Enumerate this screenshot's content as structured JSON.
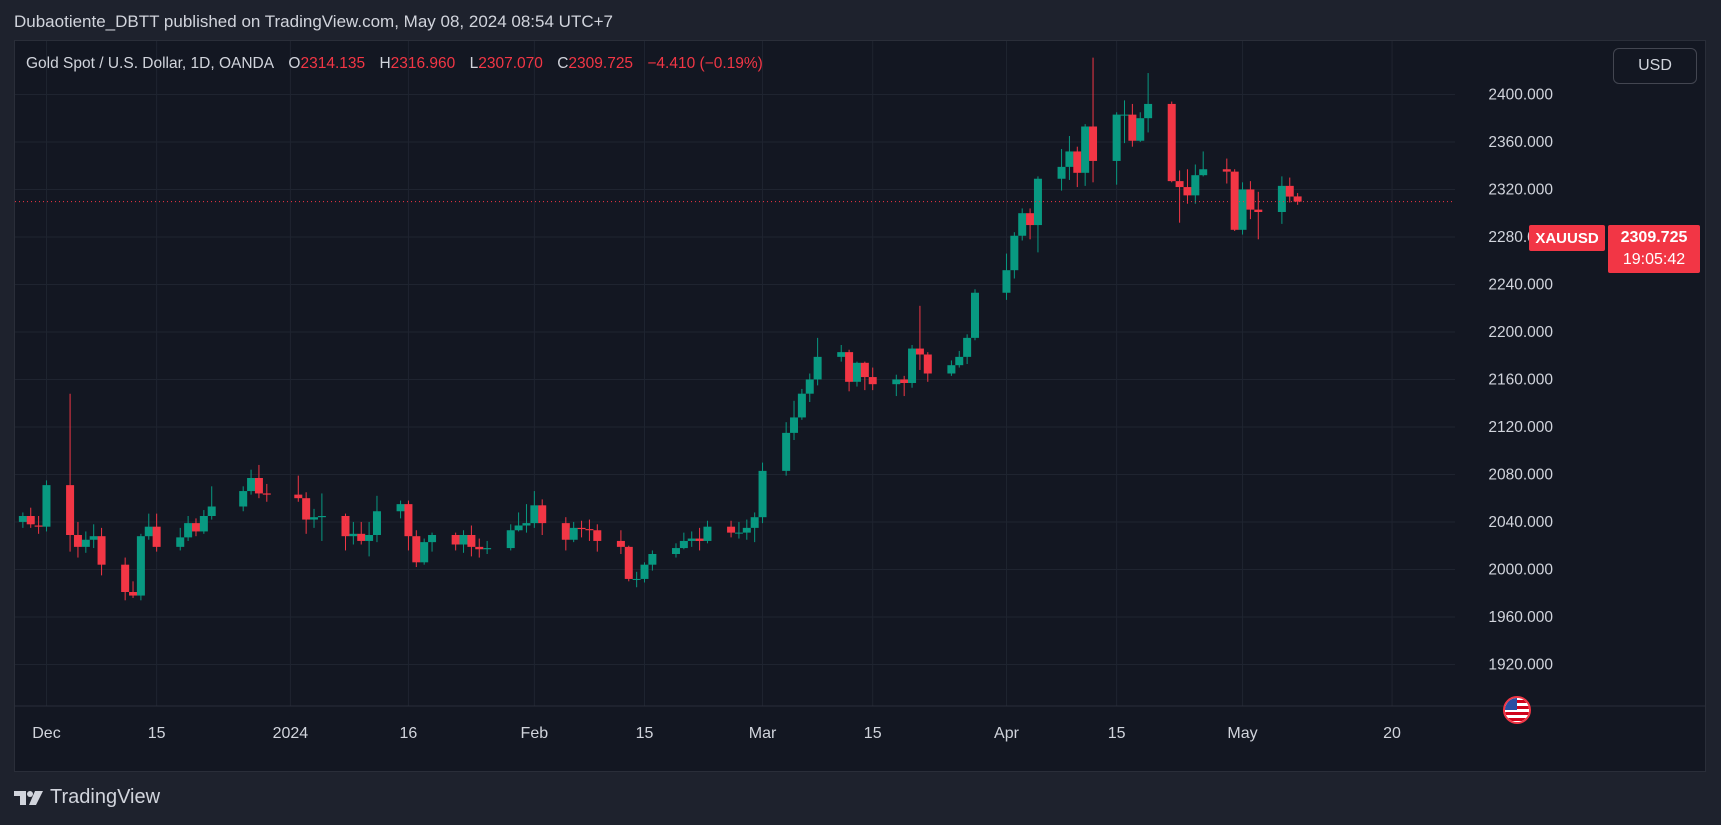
{
  "header": {
    "text": "Dubaotiente_DBTT published on TradingView.com, May 08, 2024 08:54 UTC+7"
  },
  "legend": {
    "title": "Gold Spot / U.S. Dollar, 1D, OANDA",
    "o_label": "O",
    "o_value": "2314.135",
    "h_label": "H",
    "h_value": "2316.960",
    "l_label": "L",
    "l_value": "2307.070",
    "c_label": "C",
    "c_value": "2309.725",
    "change": "−4.410 (−0.19%)"
  },
  "currency_button": "USD",
  "symbol_label": "XAUUSD",
  "last_price": "2309.725",
  "countdown": "19:05:42",
  "footer": {
    "brand": "TradingView"
  },
  "colors": {
    "up": "#089981",
    "down": "#f23645",
    "background": "#131722",
    "grid": "#1f2430"
  },
  "icons": {
    "logo": "tradingview-logo-icon",
    "flag": "us-flag-icon"
  },
  "chart_data": {
    "type": "candlestick",
    "title": "Gold Spot / U.S. Dollar, 1D, OANDA",
    "y_axis": {
      "ticks": [
        "1920.000",
        "1960.000",
        "2000.000",
        "2040.000",
        "2080.000",
        "2120.000",
        "2160.000",
        "2200.000",
        "2240.000",
        "2280.000",
        "2320.000",
        "2360.000",
        "2400.000"
      ],
      "range": [
        1885,
        2445
      ]
    },
    "x_axis": {
      "ticks": [
        {
          "label": "Dec",
          "date": "2023-12-01"
        },
        {
          "label": "15",
          "date": "2023-12-15"
        },
        {
          "label": "2024",
          "date": "2024-01-01"
        },
        {
          "label": "16",
          "date": "2024-01-16"
        },
        {
          "label": "Feb",
          "date": "2024-02-01"
        },
        {
          "label": "15",
          "date": "2024-02-15"
        },
        {
          "label": "Mar",
          "date": "2024-03-01"
        },
        {
          "label": "15",
          "date": "2024-03-15"
        },
        {
          "label": "Apr",
          "date": "2024-04-01"
        },
        {
          "label": "15",
          "date": "2024-04-15"
        },
        {
          "label": "May",
          "date": "2024-05-01"
        },
        {
          "label": "20",
          "date": "2024-05-20"
        }
      ],
      "range": [
        "2023-11-27",
        "2024-05-28"
      ]
    },
    "last_price": 2309.725,
    "candles": [
      {
        "d": "2023-11-28",
        "o": 2040,
        "h": 2048,
        "l": 2035,
        "c": 2045
      },
      {
        "d": "2023-11-29",
        "o": 2045,
        "h": 2052,
        "l": 2035,
        "c": 2038
      },
      {
        "d": "2023-11-30",
        "o": 2037,
        "h": 2045,
        "l": 2030,
        "c": 2036
      },
      {
        "d": "2023-12-01",
        "o": 2036,
        "h": 2075,
        "l": 2032,
        "c": 2071
      },
      {
        "d": "2023-12-04",
        "o": 2071,
        "h": 2148,
        "l": 2015,
        "c": 2029
      },
      {
        "d": "2023-12-05",
        "o": 2029,
        "h": 2040,
        "l": 2010,
        "c": 2019
      },
      {
        "d": "2023-12-06",
        "o": 2019,
        "h": 2032,
        "l": 2014,
        "c": 2025
      },
      {
        "d": "2023-12-07",
        "o": 2025,
        "h": 2038,
        "l": 2018,
        "c": 2028
      },
      {
        "d": "2023-12-08",
        "o": 2028,
        "h": 2035,
        "l": 1995,
        "c": 2004
      },
      {
        "d": "2023-12-11",
        "o": 2004,
        "h": 2010,
        "l": 1974,
        "c": 1981
      },
      {
        "d": "2023-12-12",
        "o": 1981,
        "h": 1990,
        "l": 1976,
        "c": 1978
      },
      {
        "d": "2023-12-13",
        "o": 1978,
        "h": 2030,
        "l": 1974,
        "c": 2028
      },
      {
        "d": "2023-12-14",
        "o": 2028,
        "h": 2047,
        "l": 2025,
        "c": 2036
      },
      {
        "d": "2023-12-15",
        "o": 2036,
        "h": 2047,
        "l": 2015,
        "c": 2019
      },
      {
        "d": "2023-12-18",
        "o": 2019,
        "h": 2035,
        "l": 2016,
        "c": 2027
      },
      {
        "d": "2023-12-19",
        "o": 2027,
        "h": 2045,
        "l": 2024,
        "c": 2039
      },
      {
        "d": "2023-12-20",
        "o": 2039,
        "h": 2043,
        "l": 2028,
        "c": 2032
      },
      {
        "d": "2023-12-21",
        "o": 2032,
        "h": 2050,
        "l": 2030,
        "c": 2045
      },
      {
        "d": "2023-12-22",
        "o": 2045,
        "h": 2070,
        "l": 2042,
        "c": 2053
      },
      {
        "d": "2023-12-26",
        "o": 2053,
        "h": 2070,
        "l": 2049,
        "c": 2066
      },
      {
        "d": "2023-12-27",
        "o": 2066,
        "h": 2084,
        "l": 2063,
        "c": 2077
      },
      {
        "d": "2023-12-28",
        "o": 2077,
        "h": 2088,
        "l": 2060,
        "c": 2064
      },
      {
        "d": "2023-12-29",
        "o": 2064,
        "h": 2072,
        "l": 2057,
        "c": 2063
      },
      {
        "d": "2024-01-02",
        "o": 2063,
        "h": 2079,
        "l": 2057,
        "c": 2060
      },
      {
        "d": "2024-01-03",
        "o": 2060,
        "h": 2065,
        "l": 2030,
        "c": 2042
      },
      {
        "d": "2024-01-04",
        "o": 2042,
        "h": 2051,
        "l": 2035,
        "c": 2044
      },
      {
        "d": "2024-01-05",
        "o": 2044,
        "h": 2064,
        "l": 2024,
        "c": 2045
      },
      {
        "d": "2024-01-08",
        "o": 2045,
        "h": 2047,
        "l": 2016,
        "c": 2028
      },
      {
        "d": "2024-01-09",
        "o": 2028,
        "h": 2040,
        "l": 2021,
        "c": 2030
      },
      {
        "d": "2024-01-10",
        "o": 2030,
        "h": 2040,
        "l": 2021,
        "c": 2024
      },
      {
        "d": "2024-01-11",
        "o": 2024,
        "h": 2040,
        "l": 2011,
        "c": 2029
      },
      {
        "d": "2024-01-12",
        "o": 2029,
        "h": 2062,
        "l": 2023,
        "c": 2049
      },
      {
        "d": "2024-01-15",
        "o": 2049,
        "h": 2058,
        "l": 2043,
        "c": 2055
      },
      {
        "d": "2024-01-16",
        "o": 2055,
        "h": 2058,
        "l": 2016,
        "c": 2028
      },
      {
        "d": "2024-01-17",
        "o": 2028,
        "h": 2033,
        "l": 2002,
        "c": 2006
      },
      {
        "d": "2024-01-18",
        "o": 2006,
        "h": 2026,
        "l": 2004,
        "c": 2023
      },
      {
        "d": "2024-01-19",
        "o": 2023,
        "h": 2031,
        "l": 2015,
        "c": 2029
      },
      {
        "d": "2024-01-22",
        "o": 2029,
        "h": 2031,
        "l": 2016,
        "c": 2021
      },
      {
        "d": "2024-01-23",
        "o": 2021,
        "h": 2033,
        "l": 2014,
        "c": 2029
      },
      {
        "d": "2024-01-24",
        "o": 2029,
        "h": 2037,
        "l": 2011,
        "c": 2019
      },
      {
        "d": "2024-01-25",
        "o": 2019,
        "h": 2026,
        "l": 2010,
        "c": 2017
      },
      {
        "d": "2024-01-26",
        "o": 2017,
        "h": 2024,
        "l": 2013,
        "c": 2018
      },
      {
        "d": "2024-01-29",
        "o": 2018,
        "h": 2038,
        "l": 2016,
        "c": 2033
      },
      {
        "d": "2024-01-30",
        "o": 2033,
        "h": 2048,
        "l": 2032,
        "c": 2037
      },
      {
        "d": "2024-01-31",
        "o": 2037,
        "h": 2055,
        "l": 2031,
        "c": 2039
      },
      {
        "d": "2024-02-01",
        "o": 2039,
        "h": 2066,
        "l": 2035,
        "c": 2054
      },
      {
        "d": "2024-02-02",
        "o": 2054,
        "h": 2059,
        "l": 2029,
        "c": 2039
      },
      {
        "d": "2024-02-05",
        "o": 2039,
        "h": 2044,
        "l": 2016,
        "c": 2025
      },
      {
        "d": "2024-02-06",
        "o": 2025,
        "h": 2040,
        "l": 2023,
        "c": 2035
      },
      {
        "d": "2024-02-07",
        "o": 2035,
        "h": 2041,
        "l": 2027,
        "c": 2034
      },
      {
        "d": "2024-02-08",
        "o": 2034,
        "h": 2042,
        "l": 2024,
        "c": 2033
      },
      {
        "d": "2024-02-09",
        "o": 2033,
        "h": 2038,
        "l": 2015,
        "c": 2024
      },
      {
        "d": "2024-02-12",
        "o": 2024,
        "h": 2033,
        "l": 2013,
        "c": 2019
      },
      {
        "d": "2024-02-13",
        "o": 2019,
        "h": 2020,
        "l": 1990,
        "c": 1992
      },
      {
        "d": "2024-02-14",
        "o": 1992,
        "h": 1998,
        "l": 1985,
        "c": 1992
      },
      {
        "d": "2024-02-15",
        "o": 1992,
        "h": 2006,
        "l": 1989,
        "c": 2004
      },
      {
        "d": "2024-02-16",
        "o": 2004,
        "h": 2016,
        "l": 1999,
        "c": 2013
      },
      {
        "d": "2024-02-19",
        "o": 2013,
        "h": 2022,
        "l": 2010,
        "c": 2018
      },
      {
        "d": "2024-02-20",
        "o": 2018,
        "h": 2031,
        "l": 2017,
        "c": 2024
      },
      {
        "d": "2024-02-21",
        "o": 2024,
        "h": 2032,
        "l": 2019,
        "c": 2026
      },
      {
        "d": "2024-02-22",
        "o": 2026,
        "h": 2035,
        "l": 2016,
        "c": 2024
      },
      {
        "d": "2024-02-23",
        "o": 2024,
        "h": 2041,
        "l": 2022,
        "c": 2036
      },
      {
        "d": "2024-02-26",
        "o": 2036,
        "h": 2041,
        "l": 2027,
        "c": 2031
      },
      {
        "d": "2024-02-27",
        "o": 2031,
        "h": 2040,
        "l": 2026,
        "c": 2031
      },
      {
        "d": "2024-02-28",
        "o": 2031,
        "h": 2042,
        "l": 2025,
        "c": 2035
      },
      {
        "d": "2024-02-29",
        "o": 2035,
        "h": 2048,
        "l": 2023,
        "c": 2044
      },
      {
        "d": "2024-03-01",
        "o": 2044,
        "h": 2090,
        "l": 2039,
        "c": 2083
      },
      {
        "d": "2024-03-04",
        "o": 2083,
        "h": 2124,
        "l": 2079,
        "c": 2115
      },
      {
        "d": "2024-03-05",
        "o": 2115,
        "h": 2142,
        "l": 2109,
        "c": 2128
      },
      {
        "d": "2024-03-06",
        "o": 2128,
        "h": 2152,
        "l": 2126,
        "c": 2148
      },
      {
        "d": "2024-03-07",
        "o": 2148,
        "h": 2165,
        "l": 2141,
        "c": 2160
      },
      {
        "d": "2024-03-08",
        "o": 2160,
        "h": 2195,
        "l": 2155,
        "c": 2179
      },
      {
        "d": "2024-03-11",
        "o": 2179,
        "h": 2189,
        "l": 2175,
        "c": 2183
      },
      {
        "d": "2024-03-12",
        "o": 2183,
        "h": 2185,
        "l": 2150,
        "c": 2158
      },
      {
        "d": "2024-03-13",
        "o": 2158,
        "h": 2175,
        "l": 2154,
        "c": 2174
      },
      {
        "d": "2024-03-14",
        "o": 2174,
        "h": 2175,
        "l": 2151,
        "c": 2162
      },
      {
        "d": "2024-03-15",
        "o": 2162,
        "h": 2170,
        "l": 2151,
        "c": 2156
      },
      {
        "d": "2024-03-18",
        "o": 2156,
        "h": 2164,
        "l": 2146,
        "c": 2160
      },
      {
        "d": "2024-03-19",
        "o": 2160,
        "h": 2163,
        "l": 2146,
        "c": 2157
      },
      {
        "d": "2024-03-20",
        "o": 2157,
        "h": 2189,
        "l": 2153,
        "c": 2186
      },
      {
        "d": "2024-03-21",
        "o": 2186,
        "h": 2222,
        "l": 2168,
        "c": 2181
      },
      {
        "d": "2024-03-22",
        "o": 2181,
        "h": 2183,
        "l": 2158,
        "c": 2165
      },
      {
        "d": "2024-03-25",
        "o": 2165,
        "h": 2176,
        "l": 2163,
        "c": 2172
      },
      {
        "d": "2024-03-26",
        "o": 2172,
        "h": 2184,
        "l": 2170,
        "c": 2179
      },
      {
        "d": "2024-03-27",
        "o": 2179,
        "h": 2198,
        "l": 2173,
        "c": 2195
      },
      {
        "d": "2024-03-28",
        "o": 2195,
        "h": 2236,
        "l": 2193,
        "c": 2233
      },
      {
        "d": "2024-04-01",
        "o": 2233,
        "h": 2266,
        "l": 2227,
        "c": 2252
      },
      {
        "d": "2024-04-02",
        "o": 2252,
        "h": 2284,
        "l": 2245,
        "c": 2281
      },
      {
        "d": "2024-04-03",
        "o": 2281,
        "h": 2304,
        "l": 2277,
        "c": 2300
      },
      {
        "d": "2024-04-04",
        "o": 2300,
        "h": 2304,
        "l": 2278,
        "c": 2290
      },
      {
        "d": "2024-04-05",
        "o": 2290,
        "h": 2331,
        "l": 2267,
        "c": 2329
      },
      {
        "d": "2024-04-08",
        "o": 2329,
        "h": 2354,
        "l": 2319,
        "c": 2339
      },
      {
        "d": "2024-04-09",
        "o": 2339,
        "h": 2365,
        "l": 2328,
        "c": 2352
      },
      {
        "d": "2024-04-10",
        "o": 2352,
        "h": 2356,
        "l": 2322,
        "c": 2334
      },
      {
        "d": "2024-04-11",
        "o": 2334,
        "h": 2375,
        "l": 2323,
        "c": 2373
      },
      {
        "d": "2024-04-12",
        "o": 2373,
        "h": 2431,
        "l": 2326,
        "c": 2344
      },
      {
        "d": "2024-04-15",
        "o": 2344,
        "h": 2385,
        "l": 2324,
        "c": 2383
      },
      {
        "d": "2024-04-16",
        "o": 2383,
        "h": 2395,
        "l": 2359,
        "c": 2383
      },
      {
        "d": "2024-04-17",
        "o": 2383,
        "h": 2392,
        "l": 2356,
        "c": 2361
      },
      {
        "d": "2024-04-18",
        "o": 2361,
        "h": 2385,
        "l": 2360,
        "c": 2380
      },
      {
        "d": "2024-04-19",
        "o": 2380,
        "h": 2418,
        "l": 2368,
        "c": 2392
      },
      {
        "d": "2024-04-22",
        "o": 2392,
        "h": 2394,
        "l": 2326,
        "c": 2327
      },
      {
        "d": "2024-04-23",
        "o": 2327,
        "h": 2336,
        "l": 2292,
        "c": 2322
      },
      {
        "d": "2024-04-24",
        "o": 2322,
        "h": 2337,
        "l": 2308,
        "c": 2315
      },
      {
        "d": "2024-04-25",
        "o": 2315,
        "h": 2341,
        "l": 2308,
        "c": 2332
      },
      {
        "d": "2024-04-26",
        "o": 2332,
        "h": 2352,
        "l": 2331,
        "c": 2337
      },
      {
        "d": "2024-04-29",
        "o": 2337,
        "h": 2346,
        "l": 2325,
        "c": 2335
      },
      {
        "d": "2024-04-30",
        "o": 2335,
        "h": 2337,
        "l": 2285,
        "c": 2286
      },
      {
        "d": "2024-05-01",
        "o": 2286,
        "h": 2326,
        "l": 2282,
        "c": 2320
      },
      {
        "d": "2024-05-02",
        "o": 2320,
        "h": 2327,
        "l": 2295,
        "c": 2303
      },
      {
        "d": "2024-05-03",
        "o": 2303,
        "h": 2318,
        "l": 2278,
        "c": 2301
      },
      {
        "d": "2024-05-06",
        "o": 2301,
        "h": 2331,
        "l": 2291,
        "c": 2323
      },
      {
        "d": "2024-05-07",
        "o": 2323,
        "h": 2330,
        "l": 2309,
        "c": 2314
      },
      {
        "d": "2024-05-08",
        "o": 2314.135,
        "h": 2316.96,
        "l": 2307.07,
        "c": 2309.725
      }
    ]
  }
}
